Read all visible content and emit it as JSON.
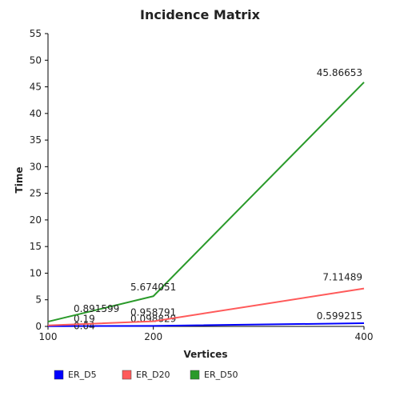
{
  "chart_data": {
    "type": "line",
    "title": "Incidence Matrix",
    "xlabel": "Vertices",
    "ylabel": "Time",
    "x": [
      100,
      200,
      400
    ],
    "xticks": [
      "100",
      "200",
      "400"
    ],
    "ylim": [
      0,
      55
    ],
    "yticks": [
      "0",
      "5",
      "10",
      "15",
      "20",
      "25",
      "30",
      "35",
      "40",
      "45",
      "50",
      "55"
    ],
    "grid": false,
    "legend_position": "bottom",
    "series": [
      {
        "name": "ER_D5",
        "color": "#0000ff",
        "values": [
          0.04,
          0.098829,
          0.599215
        ],
        "labels": [
          "0.04",
          "0.098829",
          "0.599215"
        ]
      },
      {
        "name": "ER_D20",
        "color": "#ff5a5a",
        "values": [
          0.19,
          0.958791,
          7.11489
        ],
        "labels": [
          "0.19",
          "0.958791",
          "7.11489"
        ]
      },
      {
        "name": "ER_D50",
        "color": "#2a9a2a",
        "values": [
          0.891599,
          5.674051,
          45.86653
        ],
        "labels": [
          "0.891599",
          "5.674051",
          "45.86653"
        ]
      }
    ]
  }
}
